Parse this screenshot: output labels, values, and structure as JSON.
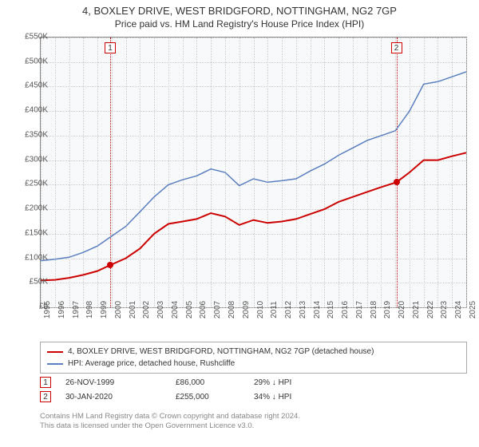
{
  "title": "4, BOXLEY DRIVE, WEST BRIDGFORD, NOTTINGHAM, NG2 7GP",
  "subtitle": "Price paid vs. HM Land Registry's House Price Index (HPI)",
  "chart": {
    "type": "line",
    "background_color": "#f8f9fa",
    "grid_color": "#cccccc",
    "border_color": "#888888",
    "ylim": [
      0,
      550000
    ],
    "ytick_step": 50000,
    "ytick_labels": [
      "£0",
      "£50K",
      "£100K",
      "£150K",
      "£200K",
      "£250K",
      "£300K",
      "£350K",
      "£400K",
      "£450K",
      "£500K",
      "£550K"
    ],
    "xlim": [
      1995,
      2025
    ],
    "xtick_step": 1,
    "xtick_labels": [
      "1995",
      "1996",
      "1997",
      "1998",
      "1999",
      "2000",
      "2001",
      "2002",
      "2003",
      "2004",
      "2005",
      "2006",
      "2007",
      "2008",
      "2009",
      "2010",
      "2011",
      "2012",
      "2013",
      "2014",
      "2015",
      "2016",
      "2017",
      "2018",
      "2019",
      "2020",
      "2021",
      "2022",
      "2023",
      "2024",
      "2025"
    ],
    "series": [
      {
        "name": "property",
        "label": "4, BOXLEY DRIVE, WEST BRIDGFORD, NOTTINGHAM, NG2 7GP (detached house)",
        "color": "#cc0000",
        "line_width": 2,
        "x": [
          1995,
          1996,
          1997,
          1998,
          1999,
          1999.9,
          2001,
          2002,
          2003,
          2004,
          2005,
          2006,
          2007,
          2008,
          2009,
          2010,
          2011,
          2012,
          2013,
          2014,
          2015,
          2016,
          2017,
          2018,
          2019,
          2020.08,
          2021,
          2022,
          2023,
          2024,
          2025
        ],
        "y": [
          55000,
          56000,
          60000,
          66000,
          74000,
          86000,
          100000,
          120000,
          150000,
          170000,
          175000,
          180000,
          192000,
          185000,
          168000,
          178000,
          172000,
          175000,
          180000,
          190000,
          200000,
          215000,
          225000,
          235000,
          245000,
          255000,
          275000,
          300000,
          300000,
          308000,
          315000
        ]
      },
      {
        "name": "hpi",
        "label": "HPI: Average price, detached house, Rushcliffe",
        "color": "#5b7fbf",
        "line_width": 1.5,
        "x": [
          1995,
          1996,
          1997,
          1998,
          1999,
          2000,
          2001,
          2002,
          2003,
          2004,
          2005,
          2006,
          2007,
          2008,
          2009,
          2010,
          2011,
          2012,
          2013,
          2014,
          2015,
          2016,
          2017,
          2018,
          2019,
          2020,
          2021,
          2022,
          2023,
          2024,
          2025
        ],
        "y": [
          95000,
          98000,
          102000,
          112000,
          125000,
          145000,
          165000,
          195000,
          225000,
          250000,
          260000,
          268000,
          282000,
          275000,
          248000,
          262000,
          255000,
          258000,
          262000,
          278000,
          292000,
          310000,
          325000,
          340000,
          350000,
          360000,
          400000,
          455000,
          460000,
          470000,
          480000
        ]
      }
    ],
    "markers": [
      {
        "id": "1",
        "x": 1999.9,
        "color": "#cc0000",
        "point_y": 86000,
        "date": "26-NOV-1999",
        "price": "£86,000",
        "diff": "29% ↓ HPI"
      },
      {
        "id": "2",
        "x": 2020.08,
        "color": "#cc0000",
        "point_y": 255000,
        "date": "30-JAN-2020",
        "price": "£255,000",
        "diff": "34% ↓ HPI"
      }
    ]
  },
  "footer": {
    "line1": "Contains HM Land Registry data © Crown copyright and database right 2024.",
    "line2": "This data is licensed under the Open Government Licence v3.0."
  }
}
